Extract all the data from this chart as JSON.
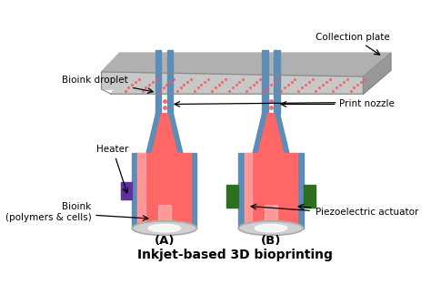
{
  "title": "Inkjet-based 3D bioprinting",
  "title_fontsize": 10,
  "bg_color": "#ffffff",
  "label_A": "(A)",
  "label_B": "(B)",
  "label_bioink": "Bioink\n(polymers & cells)",
  "label_heater": "Heater",
  "label_piezo": "Piezoelectric actuator",
  "label_nozzle": "Print nozzle",
  "label_droplet": "Bioink droplet",
  "label_collection": "Collection plate",
  "body_fill": "#ff6666",
  "body_light": "#ffaaaa",
  "body_wall": "#5b8db8",
  "body_wall_dark": "#3a6a99",
  "cap_color": "#d0d0d0",
  "cap_light": "#f0f0f0",
  "heater_color": "#6030a0",
  "piezo_color": "#2d6e1f",
  "droplet_color": "#ff5555",
  "plate_top": "#c8c8c8",
  "plate_front": "#b0b0b0",
  "plate_right": "#989898",
  "plate_border": "#888888",
  "arrow_color": "#000000",
  "text_color": "#000000",
  "font_size": 7.5
}
